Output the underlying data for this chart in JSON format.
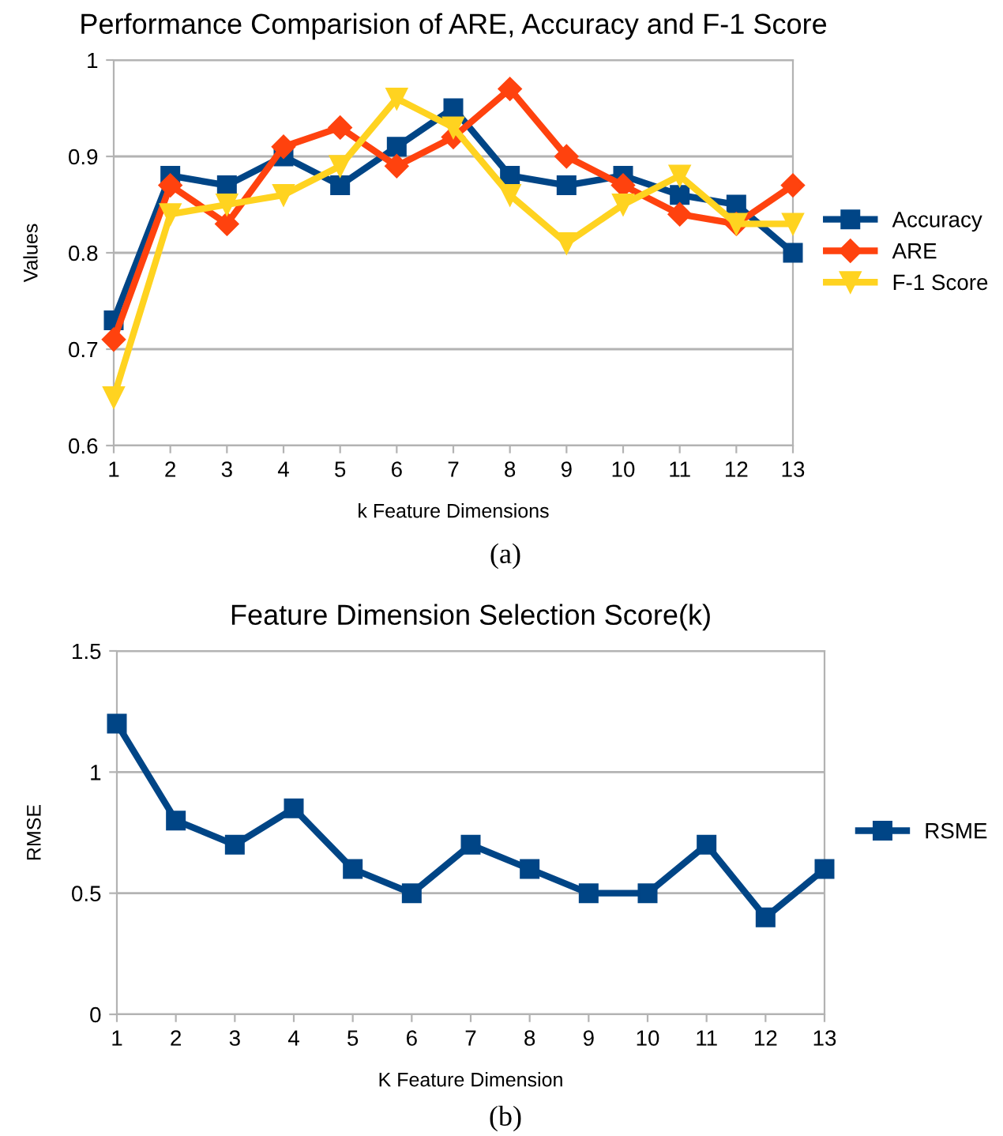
{
  "chart_data": [
    {
      "type": "line",
      "title": "Performance Comparision of ARE, Accuracy and F-1 Score",
      "xlabel": "k Feature Dimensions",
      "ylabel": "Values",
      "categories": [
        "1",
        "2",
        "3",
        "4",
        "5",
        "6",
        "7",
        "8",
        "9",
        "10",
        "11",
        "12",
        "13"
      ],
      "series": [
        {
          "name": "Accuracy",
          "color": "#004586",
          "marker": "square",
          "values": [
            0.73,
            0.88,
            0.87,
            0.9,
            0.87,
            0.91,
            0.95,
            0.88,
            0.87,
            0.88,
            0.86,
            0.85,
            0.8
          ]
        },
        {
          "name": "ARE",
          "color": "#ff420e",
          "marker": "diamond",
          "values": [
            0.71,
            0.87,
            0.83,
            0.91,
            0.93,
            0.89,
            0.92,
            0.97,
            0.9,
            0.87,
            0.84,
            0.83,
            0.87
          ]
        },
        {
          "name": "F-1 Score",
          "color": "#ffd320",
          "marker": "triangle",
          "values": [
            0.65,
            0.84,
            0.85,
            0.86,
            0.89,
            0.96,
            0.93,
            0.86,
            0.81,
            0.85,
            0.88,
            0.83,
            0.83
          ]
        }
      ],
      "ylim": [
        0.6,
        1
      ],
      "yticks": [
        {
          "value": 0.6,
          "label": "0.6"
        },
        {
          "value": 0.7,
          "label": "0.7"
        },
        {
          "value": 0.8,
          "label": "0.8"
        },
        {
          "value": 0.9,
          "label": "0.9"
        },
        {
          "value": 1,
          "label": "1"
        }
      ],
      "grid": "y",
      "legend": "right",
      "annotations": [
        "(a)"
      ]
    },
    {
      "type": "line",
      "title": "Feature Dimension Selection Score(k)",
      "xlabel": "K Feature Dimension",
      "ylabel": "RMSE",
      "categories": [
        "1",
        "2",
        "3",
        "4",
        "5",
        "6",
        "7",
        "8",
        "9",
        "10",
        "11",
        "12",
        "13"
      ],
      "series": [
        {
          "name": "RSME",
          "color": "#004586",
          "marker": "square",
          "values": [
            1.2,
            0.8,
            0.7,
            0.85,
            0.6,
            0.5,
            0.7,
            0.6,
            0.5,
            0.5,
            0.7,
            0.4,
            0.6
          ]
        }
      ],
      "ylim": [
        0,
        1.5
      ],
      "yticks": [
        0,
        0.5,
        1,
        1.5
      ],
      "grid": "y",
      "legend": "right",
      "annotations": [
        "(b)"
      ]
    }
  ]
}
